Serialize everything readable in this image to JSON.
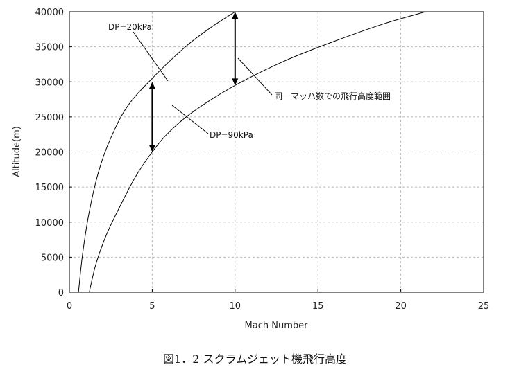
{
  "chart_data": {
    "type": "line",
    "xlabel": "Mach Number",
    "ylabel": "Altitude(m)",
    "xlim": [
      0,
      25
    ],
    "ylim": [
      0,
      40000
    ],
    "xticks": [
      "0",
      "5",
      "10",
      "15",
      "20",
      "25"
    ],
    "yticks": [
      "0",
      "5000",
      "10000",
      "15000",
      "20000",
      "25000",
      "30000",
      "35000",
      "40000"
    ],
    "grid": true,
    "series": [
      {
        "name": "DP=20kPa",
        "x": [
          0.55,
          0.8,
          1.2,
          1.8,
          2.5,
          3.5,
          5,
          7,
          8.5,
          10
        ],
        "y": [
          0,
          5500,
          11500,
          17500,
          22000,
          26500,
          30500,
          35000,
          37700,
          40000
        ]
      },
      {
        "name": "DP=90kPa",
        "x": [
          1.2,
          1.6,
          2.2,
          3,
          4,
          5,
          6,
          7.5,
          10,
          13,
          16,
          19,
          21.5
        ],
        "y": [
          0,
          4000,
          8000,
          12000,
          16500,
          20000,
          22800,
          25800,
          29500,
          33000,
          35800,
          38300,
          40000
        ]
      }
    ],
    "arrows": [
      {
        "x": 5,
        "y_from": 20000,
        "y_to": 30000
      },
      {
        "x": 10,
        "y_from": 29500,
        "y_to": 40000
      }
    ],
    "annotations": [
      {
        "text": "DP=20kPa"
      },
      {
        "text": "DP=90kPa"
      },
      {
        "text": "同一マッハ数での飛行高度範囲"
      }
    ]
  },
  "caption": "図1．2 スクラムジェット機飛行高度"
}
